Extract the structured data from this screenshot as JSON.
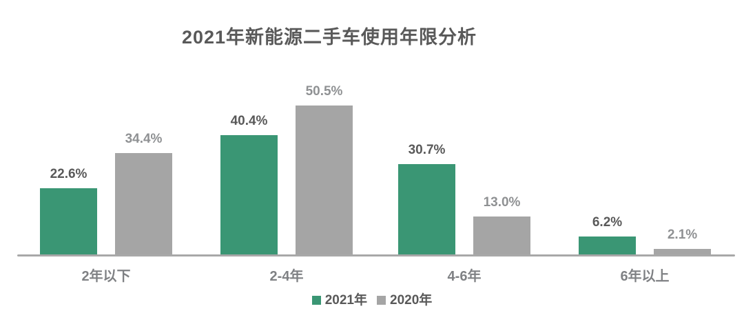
{
  "chart_data": {
    "type": "bar",
    "title": "2021年新能源二手车使用年限分析",
    "categories": [
      "2年以下",
      "2-4年",
      "4-6年",
      "6年以上"
    ],
    "series": [
      {
        "name": "2021年",
        "color": "#3a9674",
        "values": [
          22.6,
          40.4,
          30.7,
          6.2
        ]
      },
      {
        "name": "2020年",
        "color": "#a5a5a5",
        "values": [
          34.4,
          50.5,
          13.0,
          2.1
        ]
      }
    ],
    "unit": "%",
    "ylim": [
      0,
      55
    ],
    "grid": false,
    "axis_line_shown": true,
    "legend_position": "bottom",
    "value_labels_shown": true
  },
  "display": {
    "groups": [
      {
        "category": "2年以下",
        "label_2021": "22.6%",
        "label_2020": "34.4%"
      },
      {
        "category": "2-4年",
        "label_2021": "40.4%",
        "label_2020": "50.5%"
      },
      {
        "category": "4-6年",
        "label_2021": "30.7%",
        "label_2020": "13.0%"
      },
      {
        "category": "6年以上",
        "label_2021": "6.2%",
        "label_2020": "2.1%"
      }
    ]
  },
  "colors": {
    "bar_2021": "#3a9674",
    "bar_2020": "#a5a5a5",
    "title_text": "#595959",
    "value_label_2021": "#595959",
    "value_label_2020": "#8f9193",
    "category_label": "#7f8184",
    "axis_line": "#a8a8a8",
    "background": "#ffffff"
  }
}
